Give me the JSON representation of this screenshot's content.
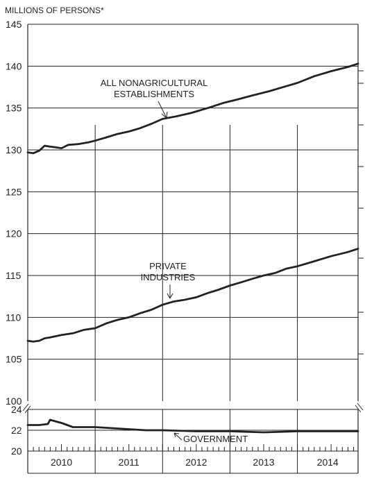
{
  "chart_data": {
    "type": "line",
    "ylabel": "MILLIONS OF PERSONS*",
    "x_categories": [
      "2010",
      "2011",
      "2012",
      "2013",
      "2014"
    ],
    "upper_panel": {
      "ylim": [
        100,
        145
      ],
      "yticks": [
        "145",
        "140",
        "135",
        "130",
        "125",
        "120",
        "115",
        "110",
        "105",
        "100"
      ]
    },
    "lower_panel": {
      "ylim": [
        20,
        24
      ],
      "yticks": [
        "24",
        "22",
        "20"
      ]
    },
    "series": [
      {
        "name": "ALL NONAGRICULTURAL ESTABLISHMENTS",
        "annotation": [
          "ALL NONAGRICULTURAL",
          "ESTABLISHMENTS"
        ],
        "x": [
          2010.0,
          2010.08,
          2010.17,
          2010.25,
          2010.33,
          2010.42,
          2010.5,
          2010.6,
          2010.75,
          2010.9,
          2011.0,
          2011.17,
          2011.33,
          2011.5,
          2011.67,
          2011.83,
          2012.0,
          2012.2,
          2012.42,
          2012.67,
          2012.9,
          2013.1,
          2013.33,
          2013.58,
          2013.83,
          2014.0,
          2014.25,
          2014.5,
          2014.75,
          2014.9
        ],
        "values": [
          129.7,
          129.6,
          129.9,
          130.5,
          130.4,
          130.3,
          130.2,
          130.6,
          130.7,
          130.9,
          131.1,
          131.5,
          131.9,
          132.2,
          132.6,
          133.1,
          133.7,
          134.0,
          134.4,
          135.0,
          135.6,
          136.0,
          136.5,
          137.0,
          137.6,
          138.0,
          138.8,
          139.4,
          139.9,
          140.3
        ]
      },
      {
        "name": "PRIVATE INDUSTRIES",
        "annotation": [
          "PRIVATE",
          "INDUSTRIES"
        ],
        "x": [
          2010.0,
          2010.08,
          2010.17,
          2010.25,
          2010.33,
          2010.5,
          2010.67,
          2010.83,
          2011.0,
          2011.17,
          2011.33,
          2011.5,
          2011.67,
          2011.83,
          2012.0,
          2012.17,
          2012.33,
          2012.5,
          2012.67,
          2012.83,
          2013.0,
          2013.17,
          2013.33,
          2013.5,
          2013.67,
          2013.83,
          2014.0,
          2014.25,
          2014.5,
          2014.75,
          2014.9
        ],
        "values": [
          107.2,
          107.1,
          107.2,
          107.5,
          107.6,
          107.9,
          108.1,
          108.5,
          108.7,
          109.3,
          109.7,
          110.0,
          110.5,
          110.9,
          111.5,
          111.9,
          112.1,
          112.4,
          112.9,
          113.3,
          113.8,
          114.2,
          114.6,
          115.0,
          115.3,
          115.8,
          116.1,
          116.7,
          117.3,
          117.8,
          118.2
        ]
      },
      {
        "name": "GOVERNMENT",
        "annotation": [
          "GOVERNMENT"
        ],
        "x": [
          2010.0,
          2010.17,
          2010.3,
          2010.33,
          2010.5,
          2010.67,
          2010.83,
          2011.0,
          2011.25,
          2011.5,
          2011.75,
          2012.0,
          2012.5,
          2013.0,
          2013.5,
          2014.0,
          2014.5,
          2014.9
        ],
        "values": [
          22.5,
          22.5,
          22.6,
          23.0,
          22.7,
          22.3,
          22.3,
          22.3,
          22.2,
          22.1,
          22.0,
          22.0,
          21.9,
          21.9,
          21.8,
          21.9,
          21.9,
          21.9
        ]
      }
    ]
  }
}
